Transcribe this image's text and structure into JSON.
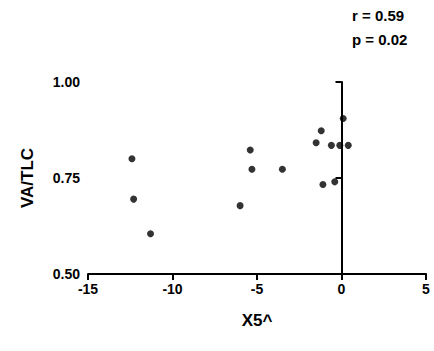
{
  "chart_data": {
    "type": "scatter",
    "x_label": "X5^",
    "y_label": "VA/TLC",
    "annotations": [
      "r = 0.59",
      "p = 0.02"
    ],
    "reference_line": 0,
    "x": [
      -12.4,
      -12.3,
      -11.3,
      -6.0,
      -5.4,
      -5.3,
      -3.5,
      -1.5,
      -1.2,
      -1.1,
      -0.6,
      -0.4,
      -0.1,
      0.1,
      0.4
    ],
    "values": [
      0.8,
      0.695,
      0.605,
      0.678,
      0.823,
      0.773,
      0.773,
      0.842,
      0.873,
      0.733,
      0.835,
      0.74,
      0.835,
      0.905,
      0.835
    ],
    "color": "#000000",
    "marker": "circle",
    "xlim": [
      -15,
      5
    ],
    "xticks": [
      -15,
      -10,
      -5,
      0,
      5
    ],
    "ylim": [
      0.5,
      1.0
    ],
    "yticks": [
      {
        "value": 0.5,
        "label": "0.50"
      },
      {
        "value": 0.75,
        "label": "0.75"
      },
      {
        "value": 1.0,
        "label": "1.00"
      }
    ],
    "grid": false
  }
}
